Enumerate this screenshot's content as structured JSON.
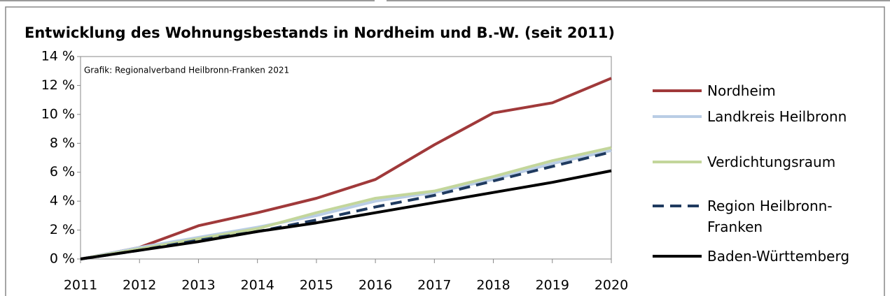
{
  "chart_data": {
    "type": "line",
    "title": "Entwicklung des Wohnungsbestands in Nordheim und B.-W. (seit 2011)",
    "annotation": "Grafik: Regionalverband Heilbronn-Franken 2021",
    "x": [
      2011,
      2012,
      2013,
      2014,
      2015,
      2016,
      2017,
      2018,
      2019,
      2020
    ],
    "xlim": [
      2011,
      2020
    ],
    "xticks": [
      2011,
      2012,
      2013,
      2014,
      2015,
      2016,
      2017,
      2018,
      2019,
      2020
    ],
    "ylim": [
      0,
      14
    ],
    "yticks": [
      {
        "value": 0,
        "label": "0 %"
      },
      {
        "value": 2,
        "label": "2 %"
      },
      {
        "value": 4,
        "label": "4 %"
      },
      {
        "value": 6,
        "label": "6 %"
      },
      {
        "value": 8,
        "label": "8 %"
      },
      {
        "value": 10,
        "label": "10 %"
      },
      {
        "value": 12,
        "label": "12 %"
      },
      {
        "value": 14,
        "label": "14 %"
      }
    ],
    "series": [
      {
        "name": "Nordheim",
        "color": "#a0393a",
        "values": [
          0,
          0.8,
          2.3,
          3.2,
          4.2,
          5.5,
          7.9,
          10.1,
          10.8,
          12.5
        ]
      },
      {
        "name": "Landkreis Heilbronn",
        "color": "#b9cde5",
        "values": [
          0,
          0.8,
          1.5,
          2.2,
          3.0,
          4.0,
          4.6,
          5.5,
          6.6,
          7.5
        ]
      },
      {
        "name": "Verdichtungsraum",
        "color": "#c3d69b",
        "values": [
          0,
          0.7,
          1.4,
          2.1,
          3.2,
          4.2,
          4.7,
          5.7,
          6.8,
          7.7
        ]
      },
      {
        "name": "Region Heilbronn-Franken",
        "color": "#1f3a5f",
        "dashed": true,
        "values": [
          0,
          0.6,
          1.3,
          1.9,
          2.7,
          3.6,
          4.4,
          5.4,
          6.4,
          7.4
        ]
      },
      {
        "name": "Baden-Württemberg",
        "color": "#000000",
        "values": [
          0,
          0.6,
          1.2,
          1.9,
          2.5,
          3.2,
          3.9,
          4.6,
          5.3,
          6.1
        ]
      }
    ]
  }
}
